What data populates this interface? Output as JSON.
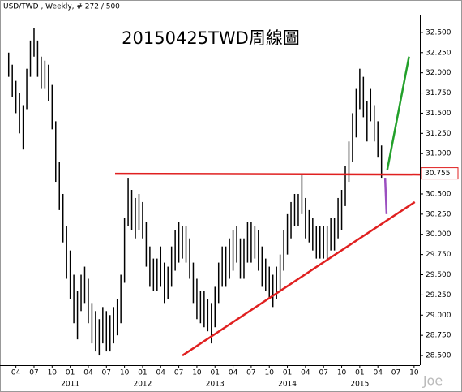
{
  "chart_data": {
    "type": "ohlc",
    "header": "USD/TWD , Weekly, # 272 / 500",
    "title": "20150425TWD周線圖",
    "watermark": "Joe",
    "color": "#000000",
    "x": [
      2010.15,
      2010.2,
      2010.25,
      2010.3,
      2010.35,
      2010.4,
      2010.45,
      2010.5,
      2010.55,
      2010.6,
      2010.65,
      2010.7,
      2010.75,
      2010.8,
      2010.85,
      2010.9,
      2010.95,
      2011,
      2011.05,
      2011.1,
      2011.15,
      2011.2,
      2011.25,
      2011.3,
      2011.35,
      2011.4,
      2011.45,
      2011.5,
      2011.55,
      2011.6,
      2011.65,
      2011.7,
      2011.75,
      2011.8,
      2011.85,
      2011.9,
      2011.95,
      2012,
      2012.05,
      2012.1,
      2012.15,
      2012.2,
      2012.25,
      2012.3,
      2012.35,
      2012.4,
      2012.45,
      2012.5,
      2012.55,
      2012.6,
      2012.65,
      2012.7,
      2012.75,
      2012.8,
      2012.85,
      2012.9,
      2012.95,
      2013,
      2013.05,
      2013.1,
      2013.15,
      2013.2,
      2013.25,
      2013.3,
      2013.35,
      2013.4,
      2013.45,
      2013.5,
      2013.55,
      2013.6,
      2013.65,
      2013.7,
      2013.75,
      2013.8,
      2013.85,
      2013.9,
      2013.95,
      2014,
      2014.05,
      2014.1,
      2014.15,
      2014.2,
      2014.25,
      2014.3,
      2014.35,
      2014.4,
      2014.45,
      2014.5,
      2014.55,
      2014.6,
      2014.65,
      2014.7,
      2014.75,
      2014.8,
      2014.85,
      2014.9,
      2014.95,
      2015,
      2015.05,
      2015.1,
      2015.15,
      2015.2,
      2015.25,
      2015.3
    ],
    "high": [
      32.25,
      32.1,
      31.9,
      31.75,
      31.6,
      32.05,
      32.4,
      32.55,
      32.4,
      32.2,
      32.15,
      32.1,
      31.85,
      31.4,
      30.9,
      30.5,
      30.1,
      29.8,
      29.5,
      29.3,
      29.5,
      29.6,
      29.45,
      29.15,
      29.05,
      28.95,
      29.1,
      29.05,
      29.0,
      29.1,
      29.2,
      29.5,
      30.2,
      30.7,
      30.55,
      30.45,
      30.5,
      30.4,
      30.15,
      29.85,
      29.7,
      29.7,
      29.85,
      29.65,
      29.6,
      29.85,
      30.05,
      30.15,
      30.1,
      30.1,
      29.95,
      29.65,
      29.45,
      29.3,
      29.3,
      29.2,
      29.15,
      29.35,
      29.65,
      29.85,
      29.85,
      29.95,
      30.05,
      30.1,
      29.95,
      29.95,
      30.15,
      30.15,
      30.1,
      30.05,
      29.85,
      29.7,
      29.6,
      29.5,
      29.6,
      29.75,
      30.05,
      30.25,
      30.4,
      30.5,
      30.5,
      30.75,
      30.45,
      30.3,
      30.2,
      30.1,
      30.1,
      30.1,
      30.1,
      30.2,
      30.2,
      30.45,
      30.55,
      30.85,
      31.15,
      31.5,
      31.8,
      32.05,
      31.95,
      31.65,
      31.8,
      31.6,
      31.4,
      31.1
    ],
    "low": [
      31.95,
      31.7,
      31.5,
      31.25,
      31.05,
      31.55,
      31.95,
      32.2,
      31.95,
      31.8,
      31.8,
      31.65,
      31.3,
      30.65,
      30.3,
      29.9,
      29.45,
      29.2,
      28.9,
      28.7,
      29.05,
      29.15,
      28.9,
      28.65,
      28.55,
      28.5,
      28.65,
      28.55,
      28.55,
      28.65,
      28.75,
      28.9,
      29.4,
      30.1,
      30.05,
      29.95,
      30.05,
      29.95,
      29.6,
      29.35,
      29.3,
      29.3,
      29.35,
      29.15,
      29.2,
      29.35,
      29.55,
      29.65,
      29.7,
      29.65,
      29.45,
      29.15,
      28.95,
      28.9,
      28.85,
      28.8,
      28.65,
      28.85,
      29.15,
      29.35,
      29.35,
      29.45,
      29.55,
      29.65,
      29.45,
      29.45,
      29.65,
      29.65,
      29.7,
      29.55,
      29.35,
      29.3,
      29.2,
      29.1,
      29.2,
      29.3,
      29.55,
      29.75,
      29.95,
      30.1,
      30.1,
      30.25,
      29.95,
      29.9,
      29.8,
      29.7,
      29.7,
      29.7,
      29.7,
      29.8,
      29.8,
      29.95,
      30.05,
      30.35,
      30.65,
      30.9,
      31.2,
      31.55,
      31.45,
      31.15,
      31.4,
      31.15,
      30.95,
      30.7
    ],
    "xlim": [
      2010.03,
      2015.83
    ],
    "ylim": [
      28.38,
      32.72
    ],
    "xticks": [
      {
        "value": 2010.25,
        "label": "04"
      },
      {
        "value": 2010.5,
        "label": "07"
      },
      {
        "value": 2010.75,
        "label": "10"
      },
      {
        "value": 2011,
        "label": "01"
      },
      {
        "value": 2011.25,
        "label": "04"
      },
      {
        "value": 2011.5,
        "label": "07"
      },
      {
        "value": 2011.75,
        "label": "10"
      },
      {
        "value": 2012,
        "label": "01"
      },
      {
        "value": 2012.25,
        "label": "04"
      },
      {
        "value": 2012.5,
        "label": "07"
      },
      {
        "value": 2012.75,
        "label": "10"
      },
      {
        "value": 2013,
        "label": "01"
      },
      {
        "value": 2013.25,
        "label": "04"
      },
      {
        "value": 2013.5,
        "label": "07"
      },
      {
        "value": 2013.75,
        "label": "10"
      },
      {
        "value": 2014,
        "label": "01"
      },
      {
        "value": 2014.25,
        "label": "04"
      },
      {
        "value": 2014.5,
        "label": "07"
      },
      {
        "value": 2014.75,
        "label": "10"
      },
      {
        "value": 2015,
        "label": "01"
      },
      {
        "value": 2015.25,
        "label": "04"
      },
      {
        "value": 2015.5,
        "label": "07"
      },
      {
        "value": 2015.75,
        "label": "10"
      }
    ],
    "year_ticks": [
      2011,
      2012,
      2013,
      2014,
      2015
    ],
    "yticks": [
      {
        "value": 28.5,
        "label": "28.500"
      },
      {
        "value": 28.75,
        "label": "28.750"
      },
      {
        "value": 29,
        "label": "29.000"
      },
      {
        "value": 29.25,
        "label": "29.250"
      },
      {
        "value": 29.5,
        "label": "29.500"
      },
      {
        "value": 29.75,
        "label": "29.750"
      },
      {
        "value": 30,
        "label": "30.000"
      },
      {
        "value": 30.25,
        "label": "30.250"
      },
      {
        "value": 30.5,
        "label": "30.500"
      },
      {
        "value": 30.75,
        "label": "30.750"
      },
      {
        "value": 31,
        "label": "31.000"
      },
      {
        "value": 31.25,
        "label": "31.250"
      },
      {
        "value": 31.5,
        "label": "31.500"
      },
      {
        "value": 31.75,
        "label": "31.750"
      },
      {
        "value": 32,
        "label": "32.000"
      },
      {
        "value": 32.25,
        "label": "32.250"
      },
      {
        "value": 32.5,
        "label": "32.500"
      }
    ],
    "last_price": 30.755,
    "last_price_color": "#e02020",
    "lines": [
      {
        "x": [
          2011.62,
          2015.83
        ],
        "y": [
          30.75,
          30.74
        ],
        "color": "#e02020"
      },
      {
        "x": [
          2012.55,
          2015.76
        ],
        "y": [
          28.5,
          30.4
        ],
        "color": "#e02020"
      },
      {
        "x": [
          2015.38,
          2015.68
        ],
        "y": [
          30.8,
          32.2
        ],
        "color": "#22a02a"
      },
      {
        "x": [
          2015.35,
          2015.37
        ],
        "y": [
          30.7,
          30.25
        ],
        "color": "#9b4fc0"
      }
    ]
  }
}
